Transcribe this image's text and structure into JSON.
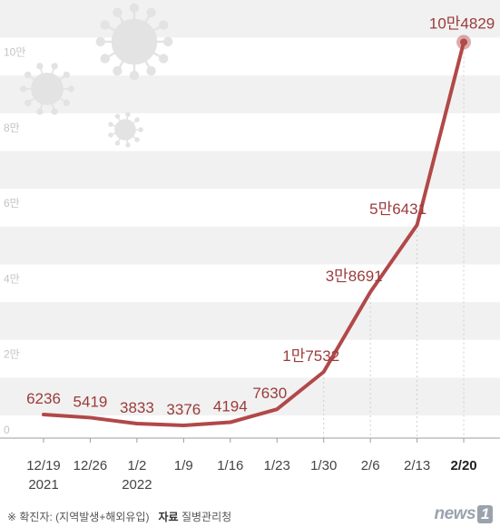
{
  "chart_data": {
    "type": "line",
    "categories": [
      "12/19",
      "12/26",
      "1/2",
      "1/9",
      "1/16",
      "1/23",
      "1/30",
      "2/6",
      "2/13",
      "2/20"
    ],
    "year_labels": [
      "2021",
      "",
      "2022",
      "",
      "",
      "",
      "",
      "",
      "",
      ""
    ],
    "values": [
      6236,
      5419,
      3833,
      3376,
      4194,
      7630,
      17532,
      38691,
      56431,
      104829
    ],
    "data_labels": [
      "6236",
      "5419",
      "3833",
      "3376",
      "4194",
      "7630",
      "1만7532",
      "3만8691",
      "5만6431",
      "10만4829"
    ],
    "yticks": [
      0,
      20000,
      40000,
      60000,
      80000,
      100000
    ],
    "ytick_labels": [
      "0",
      "2만",
      "4만",
      "6만",
      "8만",
      "10만"
    ],
    "ylim": [
      0,
      116000
    ],
    "highlight_last": true,
    "grid": "alternating bands",
    "line_color": "#b24848",
    "label_color": "#9b3b3b",
    "band_color": "#f1f1f1"
  },
  "footer": {
    "note_prefix": "※ 확진자: (지역발생+해외유입)",
    "source_label": "자료",
    "source": "질병관리청"
  },
  "logo": {
    "text": "news",
    "mark": "1"
  }
}
